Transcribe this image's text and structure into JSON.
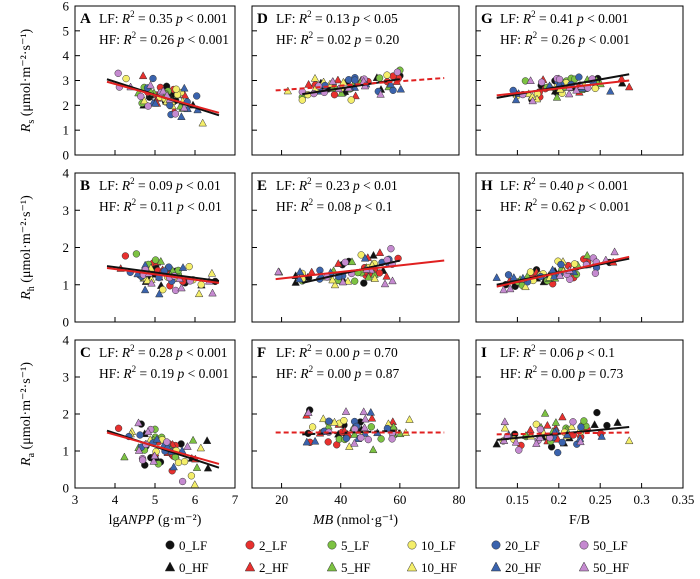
{
  "legend": [
    {
      "label": "0_LF",
      "color": "#111111",
      "marker": "circle"
    },
    {
      "label": "2_LF",
      "color": "#e8302e",
      "marker": "circle"
    },
    {
      "label": "5_LF",
      "color": "#7cc242",
      "marker": "circle"
    },
    {
      "label": "10_LF",
      "color": "#f4ee6a",
      "marker": "circle"
    },
    {
      "label": "20_LF",
      "color": "#3a63ad",
      "marker": "circle"
    },
    {
      "label": "50_LF",
      "color": "#c58ad0",
      "marker": "circle"
    },
    {
      "label": "0_HF",
      "color": "#111111",
      "marker": "triangle"
    },
    {
      "label": "2_HF",
      "color": "#e8302e",
      "marker": "triangle"
    },
    {
      "label": "5_HF",
      "color": "#7cc242",
      "marker": "triangle"
    },
    {
      "label": "10_HF",
      "color": "#f4ee6a",
      "marker": "triangle"
    },
    {
      "label": "20_HF",
      "color": "#3a63ad",
      "marker": "triangle"
    },
    {
      "label": "50_HF",
      "color": "#c58ad0",
      "marker": "triangle"
    }
  ],
  "lines": {
    "LF_color": "#111111",
    "HF_color": "#e02020"
  },
  "chart_data": [
    {
      "type": "scatter",
      "panel": "A",
      "row": 0,
      "col": 0,
      "xlim": [
        3,
        7
      ],
      "ylim": [
        0,
        6
      ],
      "xticks": [
        3,
        4,
        5,
        6,
        7
      ],
      "yticks": [
        0,
        1,
        2,
        3,
        4,
        5,
        6
      ],
      "stat_LF": {
        "r2": "0.35",
        "p": "< 0.001"
      },
      "stat_HF": {
        "r2": "0.26",
        "p": "< 0.001"
      },
      "fit_LF": {
        "x": [
          3.8,
          6.6
        ],
        "y": [
          3.05,
          1.6
        ],
        "dashed": false
      },
      "fit_HF": {
        "x": [
          3.8,
          6.6
        ],
        "y": [
          2.95,
          1.7
        ],
        "dashed": false
      },
      "x_center": 5.2,
      "x_spread": 0.6,
      "y_spread": 0.4,
      "ylabel_main": "R",
      "ylabel_sub": "s",
      "ylabel_unit": " (μmol·m⁻²·s⁻¹)",
      "xlabel_pre": "lg",
      "xlabel_var": "ANPP",
      "xlabel_unit": " (g·m⁻²)"
    },
    {
      "type": "scatter",
      "panel": "B",
      "row": 1,
      "col": 0,
      "xlim": [
        3,
        7
      ],
      "ylim": [
        0,
        4
      ],
      "xticks": [
        3,
        4,
        5,
        6,
        7
      ],
      "yticks": [
        0,
        1,
        2,
        3,
        4
      ],
      "stat_LF": {
        "r2": "0.09",
        "p": "< 0.01"
      },
      "stat_HF": {
        "r2": "0.11",
        "p": "< 0.01"
      },
      "fit_LF": {
        "x": [
          3.8,
          6.6
        ],
        "y": [
          1.5,
          1.1
        ],
        "dashed": false
      },
      "fit_HF": {
        "x": [
          3.8,
          6.6
        ],
        "y": [
          1.45,
          1.05
        ],
        "dashed": false
      },
      "x_center": 5.2,
      "x_spread": 0.6,
      "y_spread": 0.25,
      "ylabel_main": "R",
      "ylabel_sub": "h",
      "ylabel_unit": " (μmol·m⁻²·s⁻¹)"
    },
    {
      "type": "scatter",
      "panel": "C",
      "row": 2,
      "col": 0,
      "xlim": [
        3,
        7
      ],
      "ylim": [
        0,
        4
      ],
      "xticks": [
        3,
        4,
        5,
        6,
        7
      ],
      "yticks": [
        0,
        1,
        2,
        3,
        4
      ],
      "stat_LF": {
        "r2": "0.28",
        "p": "< 0.001"
      },
      "stat_HF": {
        "r2": "0.19",
        "p": "< 0.001"
      },
      "fit_LF": {
        "x": [
          3.8,
          6.6
        ],
        "y": [
          1.55,
          0.55
        ],
        "dashed": false
      },
      "fit_HF": {
        "x": [
          3.8,
          6.6
        ],
        "y": [
          1.5,
          0.65
        ],
        "dashed": false
      },
      "x_center": 5.2,
      "x_spread": 0.6,
      "y_spread": 0.4,
      "ylabel_main": "R",
      "ylabel_sub": "a",
      "ylabel_unit": " (μmol·m⁻²·s⁻¹)",
      "xlabel_pre": "lg",
      "xlabel_var": "ANPP",
      "xlabel_unit": " (g·m⁻²)"
    },
    {
      "type": "scatter",
      "panel": "D",
      "row": 0,
      "col": 1,
      "xlim": [
        10,
        80
      ],
      "ylim": [
        0,
        6
      ],
      "xticks": [
        20,
        40,
        60,
        80
      ],
      "yticks": [
        0,
        1,
        2,
        3,
        4,
        5,
        6
      ],
      "stat_LF": {
        "r2": "0.13",
        "p": "< 0.05"
      },
      "stat_HF": {
        "r2": "0.02",
        "p": "= 0.20"
      },
      "fit_LF": {
        "x": [
          27,
          60
        ],
        "y": [
          2.45,
          3.05
        ],
        "dashed": false
      },
      "fit_HF": {
        "x": [
          18,
          75
        ],
        "y": [
          2.6,
          3.1
        ],
        "dashed": true
      },
      "x_center": 43,
      "x_spread": 11,
      "y_spread": 0.35
    },
    {
      "type": "scatter",
      "panel": "E",
      "row": 1,
      "col": 1,
      "xlim": [
        10,
        80
      ],
      "ylim": [
        0,
        4
      ],
      "xticks": [
        20,
        40,
        60,
        80
      ],
      "yticks": [
        0,
        1,
        2,
        3,
        4
      ],
      "stat_LF": {
        "r2": "0.23",
        "p": "< 0.01"
      },
      "stat_HF": {
        "r2": "0.08",
        "p": "< 0.1"
      },
      "fit_LF": {
        "x": [
          27,
          60
        ],
        "y": [
          1.05,
          1.65
        ],
        "dashed": false
      },
      "fit_HF": {
        "x": [
          18,
          75
        ],
        "y": [
          1.15,
          1.65
        ],
        "dashed": false
      },
      "x_center": 43,
      "x_spread": 11,
      "y_spread": 0.25
    },
    {
      "type": "scatter",
      "panel": "F",
      "row": 2,
      "col": 1,
      "xlim": [
        10,
        80
      ],
      "ylim": [
        0,
        4
      ],
      "xticks": [
        20,
        40,
        60,
        80
      ],
      "yticks": [
        0,
        1,
        2,
        3,
        4
      ],
      "stat_LF": {
        "r2": "0.00",
        "p": "= 0.70"
      },
      "stat_HF": {
        "r2": "0.00",
        "p": "= 0.87"
      },
      "fit_LF": {
        "x": [
          27,
          60
        ],
        "y": [
          1.45,
          1.55
        ],
        "dashed": true
      },
      "fit_HF": {
        "x": [
          18,
          75
        ],
        "y": [
          1.5,
          1.5
        ],
        "dashed": true
      },
      "x_center": 43,
      "x_spread": 11,
      "y_spread": 0.35,
      "xlabel_var": "MB",
      "xlabel_unit": " (nmol·g⁻¹)"
    },
    {
      "type": "scatter",
      "panel": "G",
      "row": 0,
      "col": 2,
      "xlim": [
        0.1,
        0.35
      ],
      "ylim": [
        0,
        6
      ],
      "xticks": [
        0.15,
        0.2,
        0.25,
        0.3,
        0.35
      ],
      "yticks": [
        0,
        1,
        2,
        3,
        4,
        5,
        6
      ],
      "stat_LF": {
        "r2": "0.41",
        "p": "< 0.001"
      },
      "stat_HF": {
        "r2": "0.26",
        "p": "< 0.001"
      },
      "fit_LF": {
        "x": [
          0.125,
          0.285
        ],
        "y": [
          2.3,
          3.25
        ],
        "dashed": false
      },
      "fit_HF": {
        "x": [
          0.125,
          0.285
        ],
        "y": [
          2.4,
          3.0
        ],
        "dashed": false
      },
      "x_center": 0.2,
      "x_spread": 0.04,
      "y_spread": 0.3
    },
    {
      "type": "scatter",
      "panel": "H",
      "row": 1,
      "col": 2,
      "xlim": [
        0.1,
        0.35
      ],
      "ylim": [
        0,
        4
      ],
      "xticks": [
        0.15,
        0.2,
        0.25,
        0.3,
        0.35
      ],
      "yticks": [
        0,
        1,
        2,
        3,
        4
      ],
      "stat_LF": {
        "r2": "0.40",
        "p": "< 0.001"
      },
      "stat_HF": {
        "r2": "0.62",
        "p": "< 0.001"
      },
      "fit_LF": {
        "x": [
          0.125,
          0.285
        ],
        "y": [
          1.0,
          1.7
        ],
        "dashed": false
      },
      "fit_HF": {
        "x": [
          0.125,
          0.285
        ],
        "y": [
          0.95,
          1.75
        ],
        "dashed": false
      },
      "x_center": 0.2,
      "x_spread": 0.04,
      "y_spread": 0.2
    },
    {
      "type": "scatter",
      "panel": "I",
      "row": 2,
      "col": 2,
      "xlim": [
        0.1,
        0.35
      ],
      "ylim": [
        0,
        4
      ],
      "xticks": [
        0.15,
        0.2,
        0.25,
        0.3,
        0.35
      ],
      "yticks": [
        0,
        1,
        2,
        3,
        4
      ],
      "stat_LF": {
        "r2": "0.06",
        "p": "< 0.1"
      },
      "stat_HF": {
        "r2": "0.00",
        "p": "= 0.73"
      },
      "fit_LF": {
        "x": [
          0.125,
          0.285
        ],
        "y": [
          1.3,
          1.65
        ],
        "dashed": false
      },
      "fit_HF": {
        "x": [
          0.125,
          0.285
        ],
        "y": [
          1.45,
          1.5
        ],
        "dashed": true
      },
      "x_center": 0.2,
      "x_spread": 0.04,
      "y_spread": 0.3,
      "xlabel_var": "F/B"
    }
  ]
}
